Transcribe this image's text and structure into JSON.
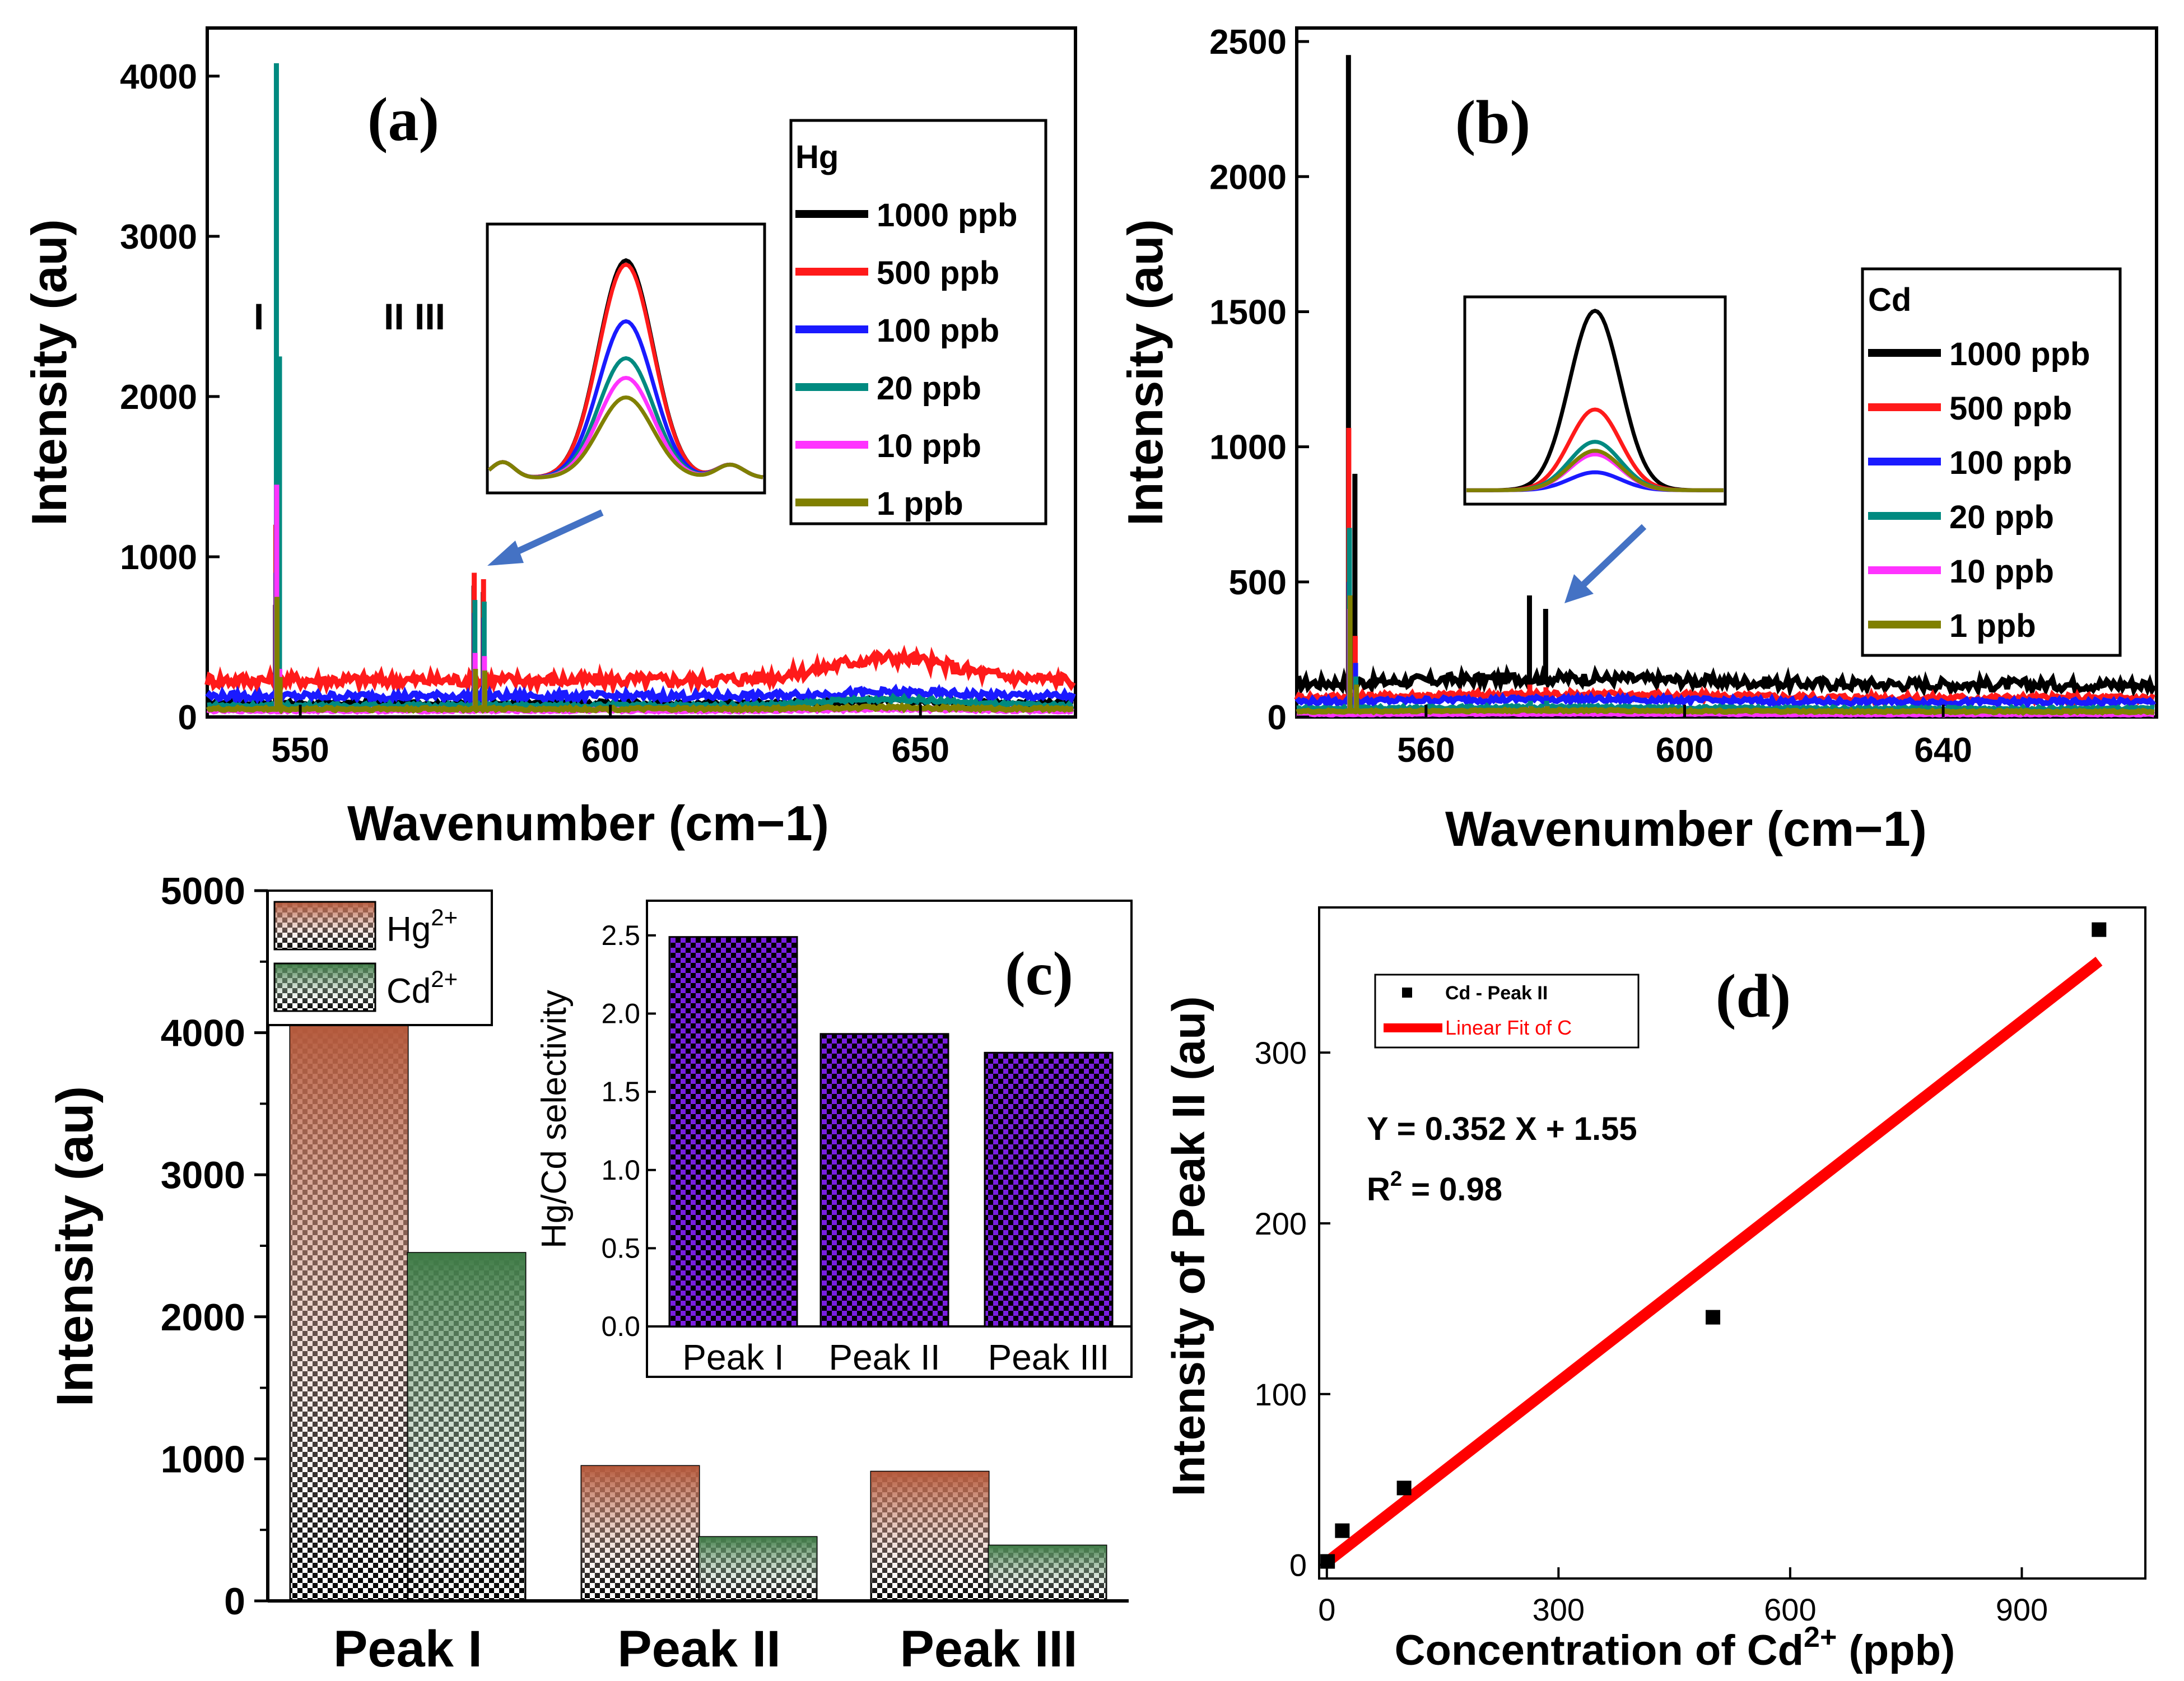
{
  "colors": {
    "c1000": "#000000",
    "c500": "#ff1a1a",
    "c100": "#1a1aff",
    "c20": "#008a80",
    "c10": "#ff33ff",
    "c1": "#808000",
    "hg_bar": "#b4583a",
    "cd_bar": "#3e7a45",
    "sel_bar": "#7a1fe0",
    "fit": "#ff0000"
  },
  "chart_data": [
    {
      "id": "a",
      "type": "line",
      "label": "(a)",
      "xlabel": "Wavenumber (cm−1)",
      "ylabel": "Intensity (au)",
      "xlim": [
        535,
        675
      ],
      "ylim": [
        0,
        4300
      ],
      "xticks": [
        550,
        600,
        650
      ],
      "yticks": [
        0,
        1000,
        2000,
        3000,
        4000
      ],
      "peak_labels": {
        "p1": "I",
        "p23": "II III"
      },
      "legend_title": "Hg",
      "series": [
        {
          "name": "1000 ppb",
          "color_key": "c1000",
          "baseline": 85,
          "p1": 700,
          "p2": 820,
          "p3": 780,
          "p4": 410
        },
        {
          "name": "500 ppb",
          "color_key": "c500",
          "baseline": 230,
          "p1": 1200,
          "p2": 900,
          "p3": 860,
          "p4": 460
        },
        {
          "name": "100 ppb",
          "color_key": "c100",
          "baseline": 130,
          "p1": 900,
          "p2": 650,
          "p3": 620,
          "p4": 380
        },
        {
          "name": "20 ppb",
          "color_key": "c20",
          "baseline": 70,
          "p1": 4080,
          "p2": 730,
          "p3": 720,
          "p4": 2250
        },
        {
          "name": "10 ppb",
          "color_key": "c10",
          "baseline": 40,
          "p1": 1450,
          "p2": 400,
          "p3": 380,
          "p4": 300
        },
        {
          "name": "1 ppb",
          "color_key": "c1",
          "baseline": 50,
          "p1": 750,
          "p2": 300,
          "p3": 290,
          "p4": 250
        }
      ],
      "inset_heights": [
        1.0,
        0.98,
        0.72,
        0.55,
        0.46,
        0.37
      ]
    },
    {
      "id": "b",
      "type": "line",
      "label": "(b)",
      "xlabel": "Wavenumber (cm−1)",
      "ylabel": "Intensity (au)",
      "xlim": [
        540,
        673
      ],
      "ylim": [
        0,
        2550
      ],
      "xticks": [
        560,
        600,
        640
      ],
      "yticks": [
        0,
        500,
        1000,
        1500,
        2000,
        2500
      ],
      "legend_title": "Cd",
      "series": [
        {
          "name": "1000 ppb",
          "color_key": "c1000",
          "baseline": 120,
          "p1": 2450,
          "p2": 450,
          "p3": 400,
          "p4": 900
        },
        {
          "name": "500 ppb",
          "color_key": "c500",
          "baseline": 70,
          "p1": 1070,
          "p2": 120,
          "p3": 110,
          "p4": 300
        },
        {
          "name": "100 ppb",
          "color_key": "c100",
          "baseline": 55,
          "p1": 500,
          "p2": 80,
          "p3": 80,
          "p4": 200
        },
        {
          "name": "20 ppb",
          "color_key": "c20",
          "baseline": 30,
          "p1": 700,
          "p2": 60,
          "p3": 60,
          "p4": 150
        },
        {
          "name": "10 ppb",
          "color_key": "c10",
          "baseline": 10,
          "p1": 400,
          "p2": 40,
          "p3": 40,
          "p4": 100
        },
        {
          "name": "1 ppb",
          "color_key": "c1",
          "baseline": 20,
          "p1": 450,
          "p2": 40,
          "p3": 40,
          "p4": 120
        }
      ],
      "inset_heights": [
        1.0,
        0.45,
        0.1,
        0.27,
        0.2,
        0.22
      ]
    },
    {
      "id": "c",
      "type": "bar",
      "label": "(c)",
      "categories": [
        "Peak I",
        "Peak II",
        "Peak III"
      ],
      "ylabel": "Intensity (au)",
      "ylim": [
        0,
        5000
      ],
      "yticks": [
        0,
        1000,
        2000,
        3000,
        4000,
        5000
      ],
      "legend": [
        "Hg",
        "Cd"
      ],
      "legend_sup": "2+",
      "series": [
        {
          "name": "Hg2+",
          "values": [
            4080,
            950,
            910
          ]
        },
        {
          "name": "Cd2+",
          "values": [
            2450,
            450,
            390
          ]
        }
      ],
      "inset": {
        "type": "bar",
        "ylabel": "Hg/Cd selectivity",
        "ylim": [
          0,
          2.65
        ],
        "yticks": [
          "0.0",
          "0.5",
          "1.0",
          "1.5",
          "2.0",
          "2.5"
        ],
        "categories": [
          "Peak I",
          "Peak II",
          "Peak III"
        ],
        "values": [
          2.49,
          1.87,
          1.75
        ]
      }
    },
    {
      "id": "d",
      "type": "scatter",
      "label": "(d)",
      "xlabel": "Concentration of Cd",
      "xlabel_sup": "2+",
      "xlabel_tail": " (ppb)",
      "ylabel": "Intensity of Peak II (au)",
      "xlim": [
        -10,
        1060
      ],
      "ylim": [
        -8,
        385
      ],
      "xticks": [
        0,
        300,
        600,
        900
      ],
      "yticks": [
        0,
        100,
        200,
        300
      ],
      "points": [
        {
          "x": 1,
          "y": 2
        },
        {
          "x": 20,
          "y": 20
        },
        {
          "x": 100,
          "y": 45
        },
        {
          "x": 500,
          "y": 145
        },
        {
          "x": 1000,
          "y": 372
        }
      ],
      "fit": {
        "slope": 0.352,
        "intercept": 1.55,
        "x0": 0,
        "x1": 1000
      },
      "legend": [
        "Cd - Peak II",
        "Linear Fit of C"
      ],
      "equation": "Y = 0.352 X + 1.55",
      "r2_prefix": "R",
      "r2_sup": "2",
      "r2_value": " = 0.98"
    }
  ]
}
